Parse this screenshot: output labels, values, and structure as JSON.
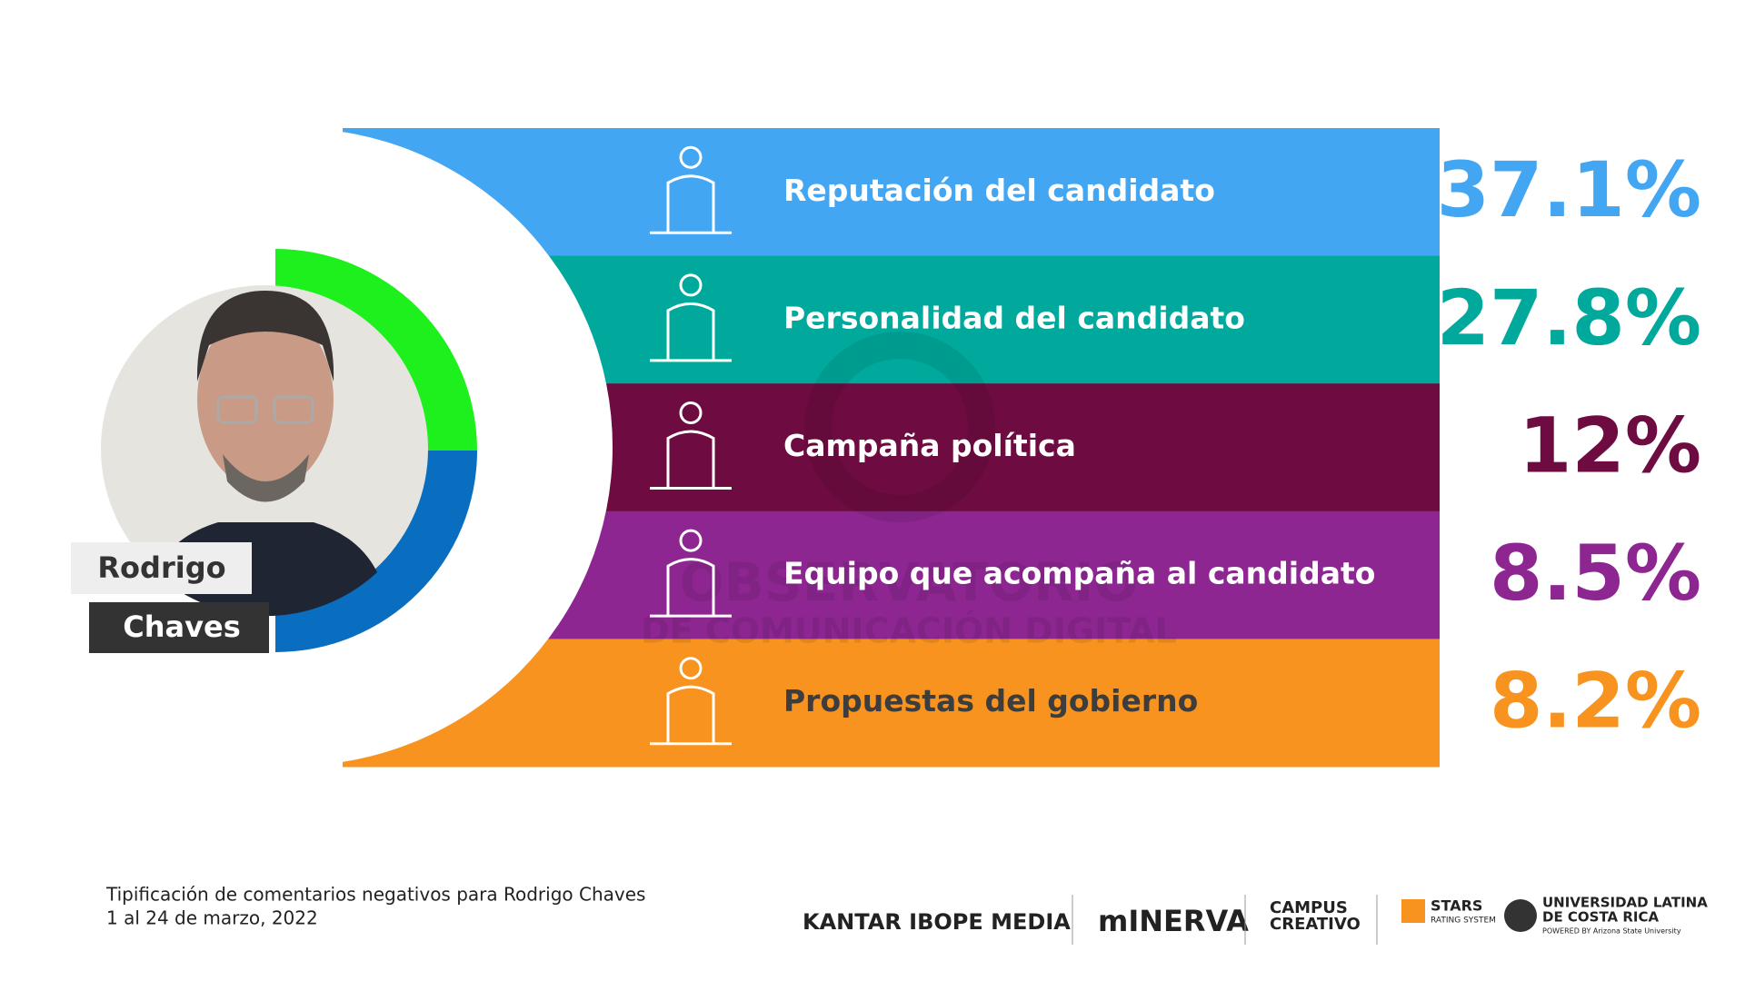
{
  "rows": [
    {
      "label": "Reputación del candidato",
      "share": "37.1%",
      "color": "#42a6f3"
    },
    {
      "label": "Personalidad del candidato",
      "share": "27.8%",
      "color": "#00a99c"
    },
    {
      "label": "Campaña política",
      "share": "12%",
      "color": "#6e0c42"
    },
    {
      "label": "Equipo que acompaña al candidato",
      "share": "8.5%",
      "color": "#8d2691"
    },
    {
      "label": "Propuestas del gobierno",
      "share": "8.2%",
      "color": "#f7931e"
    }
  ],
  "person": {
    "first_name": "Rodrigo",
    "last_name": "Chaves"
  },
  "watermark": {
    "line1": "OBSERVATORIO",
    "line2": "DE COMUNICACIÓN DIGITAL"
  },
  "footer": {
    "caption_line1": "Tipificación de comentarios negativos para Rodrigo Chaves",
    "caption_line2": "1 al 24 de marzo, 2022",
    "logos": [
      "KANTAR IBOPE MEDIA",
      "mINERVA",
      "CAMPUS",
      "CREATIVO",
      "STARS",
      "RATING SYSTEM",
      "UNIVERSIDAD LATINA",
      "DE COSTA RICA",
      "POWERED BY Arizona State University"
    ]
  }
}
